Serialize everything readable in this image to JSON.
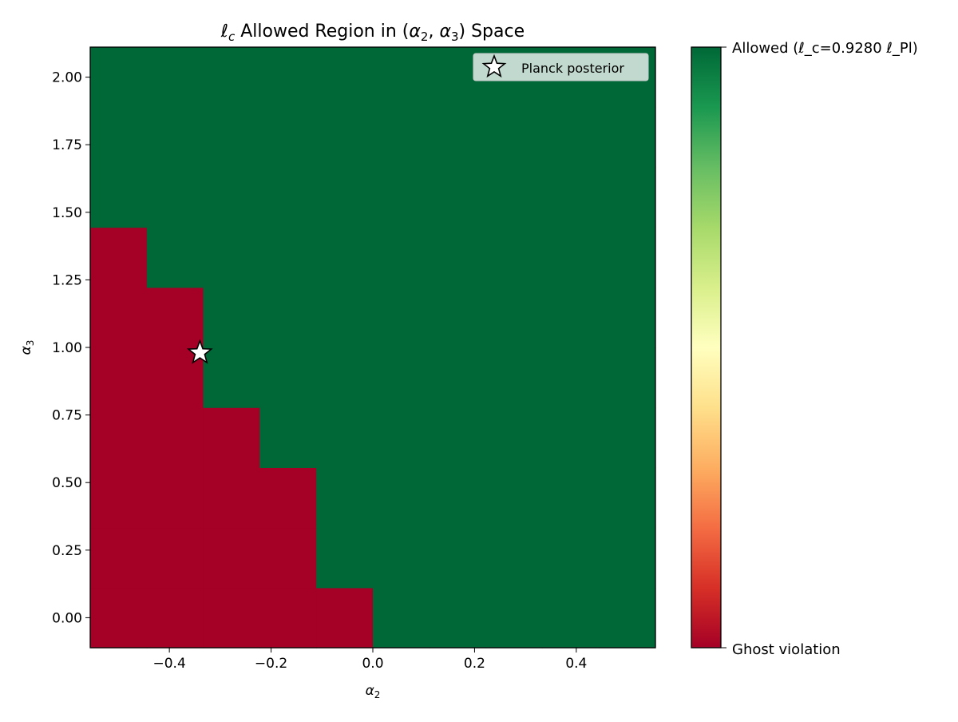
{
  "chart_data": {
    "type": "heatmap",
    "title": "ℓc Allowed Region in (α2, α3) Space",
    "title_parts": [
      "ℓ",
      "c",
      " Allowed Region in (",
      "α",
      "2",
      ", ",
      "α",
      "3",
      ") Space"
    ],
    "xlabel": "α2",
    "xlabel_parts": [
      "α",
      "2"
    ],
    "ylabel": "α3",
    "ylabel_parts": [
      "α",
      "3"
    ],
    "x": [
      -0.5,
      -0.3889,
      -0.2778,
      -0.1667,
      -0.0556,
      0.0556,
      0.1667,
      0.2778,
      0.3889,
      0.5
    ],
    "y": [
      0.0,
      0.2222,
      0.4444,
      0.6667,
      0.8889,
      1.1111,
      1.3333,
      1.5556,
      1.7778,
      2.0
    ],
    "xlim": [
      -0.5556,
      0.5556
    ],
    "ylim": [
      -0.1111,
      2.1111
    ],
    "z": [
      [
        0,
        0,
        0,
        0,
        0,
        1,
        1,
        1,
        1,
        1
      ],
      [
        0,
        0,
        0,
        0,
        1,
        1,
        1,
        1,
        1,
        1
      ],
      [
        0,
        0,
        0,
        0,
        1,
        1,
        1,
        1,
        1,
        1
      ],
      [
        0,
        0,
        0,
        1,
        1,
        1,
        1,
        1,
        1,
        1
      ],
      [
        0,
        0,
        1,
        1,
        1,
        1,
        1,
        1,
        1,
        1
      ],
      [
        0,
        0,
        1,
        1,
        1,
        1,
        1,
        1,
        1,
        1
      ],
      [
        0,
        1,
        1,
        1,
        1,
        1,
        1,
        1,
        1,
        1
      ],
      [
        1,
        1,
        1,
        1,
        1,
        1,
        1,
        1,
        1,
        1
      ],
      [
        1,
        1,
        1,
        1,
        1,
        1,
        1,
        1,
        1,
        1
      ],
      [
        1,
        1,
        1,
        1,
        1,
        1,
        1,
        1,
        1,
        1
      ]
    ],
    "xticks": [
      -0.4,
      -0.2,
      0.0,
      0.2,
      0.4
    ],
    "xtick_labels": [
      "−0.4",
      "−0.2",
      "0.0",
      "0.2",
      "0.4"
    ],
    "yticks": [
      0,
      0.25,
      0.5,
      0.75,
      1.0,
      1.25,
      1.5,
      1.75,
      2.0
    ],
    "ytick_labels": [
      "0.00",
      "0.25",
      "0.50",
      "0.75",
      "1.00",
      "1.25",
      "1.50",
      "1.75",
      "2.00"
    ],
    "marker": {
      "label": "Planck posterior",
      "x": -0.34,
      "y": 0.98,
      "shape": "star"
    },
    "legend_position": "top-right",
    "colorbar": {
      "colormap": "RdYlGn",
      "colors": [
        "#a50026",
        "#d73027",
        "#f46d43",
        "#fdae61",
        "#fee08b",
        "#ffffbf",
        "#d9ef8b",
        "#a6d96a",
        "#66bd63",
        "#1a9850",
        "#006837"
      ],
      "top_label": "Allowed (ℓ_c=0.9280 ℓ_Pl)",
      "bottom_label": "Ghost violation"
    },
    "colors": {
      "allowed": "#006837",
      "violation": "#a50026"
    }
  }
}
